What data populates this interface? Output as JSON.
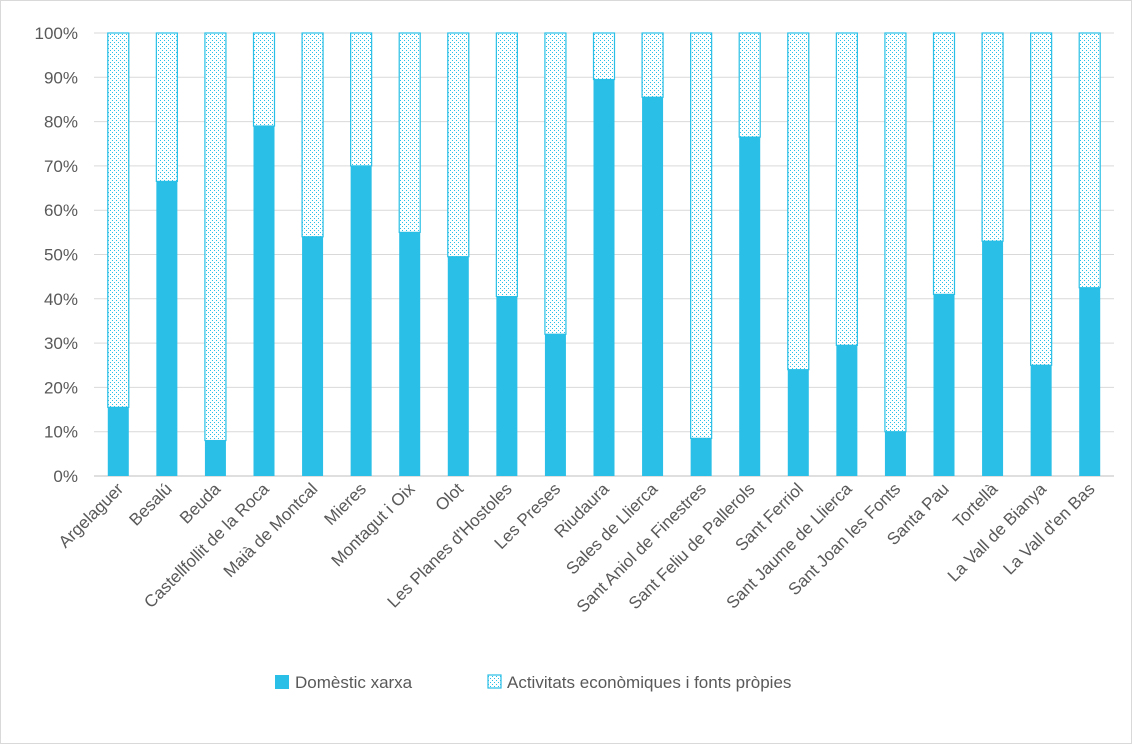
{
  "chart_data": {
    "type": "bar",
    "stacked": "percent",
    "categories": [
      "Argelaguer",
      "Besalú",
      "Beuda",
      "Castellfollit de la Roca",
      "Maià de Montcal",
      "Mieres",
      "Montagut i Oix",
      "Olot",
      "Les Planes d'Hostoles",
      "Les Preses",
      "Riudaura",
      "Sales de Llierca",
      "Sant Aniol de Finestres",
      "Sant Feliu de Pallerols",
      "Sant Ferriol",
      "Sant Jaume de Llierca",
      "Sant Joan les Fonts",
      "Santa Pau",
      "Tortellà",
      "La Vall de Bianya",
      "La Vall d'en Bas"
    ],
    "series": [
      {
        "name": "Domèstic xarxa",
        "values": [
          15.5,
          66.5,
          8,
          79,
          54,
          70,
          55,
          49.5,
          40.5,
          32,
          89.5,
          85.5,
          8.5,
          76.5,
          24,
          29.5,
          10,
          41,
          53,
          25,
          42.5
        ]
      },
      {
        "name": "Activitats econòmiques i fonts pròpies",
        "values": [
          84.5,
          33.5,
          92,
          21,
          46,
          30,
          45,
          50.5,
          59.5,
          68,
          10.5,
          14.5,
          91.5,
          23.5,
          76,
          70.5,
          90,
          59,
          47,
          75,
          57.5
        ]
      }
    ],
    "yticks": [
      "0%",
      "10%",
      "20%",
      "30%",
      "40%",
      "50%",
      "60%",
      "70%",
      "80%",
      "90%",
      "100%"
    ],
    "ylim": [
      0,
      100
    ],
    "grid": true,
    "legend_position": "bottom",
    "colors": {
      "solid": "#29BFE6",
      "pattern": "#29BFE6",
      "axis": "#d9d9d9",
      "text": "#595959"
    }
  }
}
